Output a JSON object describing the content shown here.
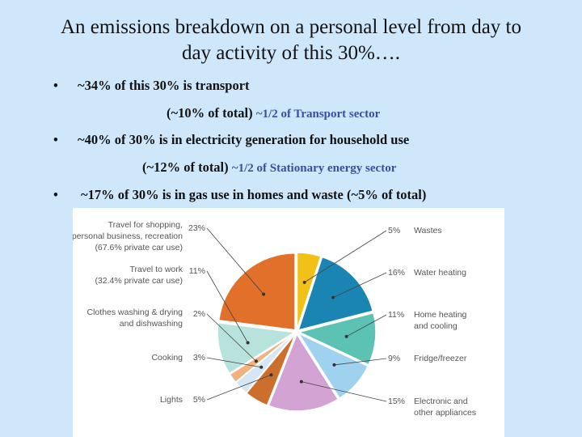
{
  "title_line1": "An emissions breakdown on a personal level from day to",
  "title_line2": "day activity of this 30%….",
  "bullets": [
    {
      "dot": "•",
      "text": "~34% of this 30% is transport"
    },
    {
      "dot": "•",
      "text": "~40% of 30% is in electricity generation for household use"
    },
    {
      "dot": "•",
      "text": "~17% of 30% is in gas use in homes and waste (~5% of total)"
    }
  ],
  "subs": [
    {
      "main": "(~10% of total)",
      "note": "~1/2 of Transport sector"
    },
    {
      "main": "(~12% of total)",
      "note": "~1/2 of Stationary energy  sector"
    }
  ],
  "chart_data": {
    "type": "pie",
    "slices": [
      {
        "label": "Wastes",
        "pct_label": "5%",
        "value": 5,
        "color": "#f2c118"
      },
      {
        "label": "Water heating",
        "pct_label": "16%",
        "value": 16,
        "color": "#1a85b3"
      },
      {
        "label": "Home heating and cooling",
        "pct_label": "11%",
        "value": 11,
        "color": "#5cc2b3"
      },
      {
        "label": "Fridge/freezer",
        "pct_label": "9%",
        "value": 9,
        "color": "#9fd2ef"
      },
      {
        "label": "Electronic and other appliances",
        "pct_label": "15%",
        "value": 15,
        "color": "#d3a3d3"
      },
      {
        "label": "Lights",
        "pct_label": "5%",
        "value": 5,
        "color": "#cc6f2d"
      },
      {
        "label": "Cooking",
        "pct_label": "3%",
        "value": 3,
        "color": "#d6e6f4"
      },
      {
        "label": "Clothes washing & drying and dishwashing",
        "pct_label": "2%",
        "value": 2,
        "color": "#f2b27e"
      },
      {
        "label": "Travel to work (32.4% private car use)",
        "pct_label": "11%",
        "value": 11,
        "color": "#b8e2dc"
      },
      {
        "label": "Travel for shopping, personal business, recreation (67.6% private car use)",
        "pct_label": "23%",
        "value": 23,
        "color": "#e0702a"
      }
    ],
    "right_labels": [
      [
        "Wastes"
      ],
      [
        "Water heating"
      ],
      [
        "Home heating",
        "and cooling"
      ],
      [
        "Fridge/freezer"
      ],
      [
        "Electronic and",
        "other appliances"
      ]
    ],
    "left_labels": [
      [
        "Lights"
      ],
      [
        "Cooking"
      ],
      [
        "Clothes washing & drying",
        "and dishwashing"
      ],
      [
        "Travel to work",
        "(32.4% private car use)"
      ],
      [
        "Travel for shopping,",
        "personal business, recreation",
        "(67.6% private car use)"
      ]
    ]
  }
}
